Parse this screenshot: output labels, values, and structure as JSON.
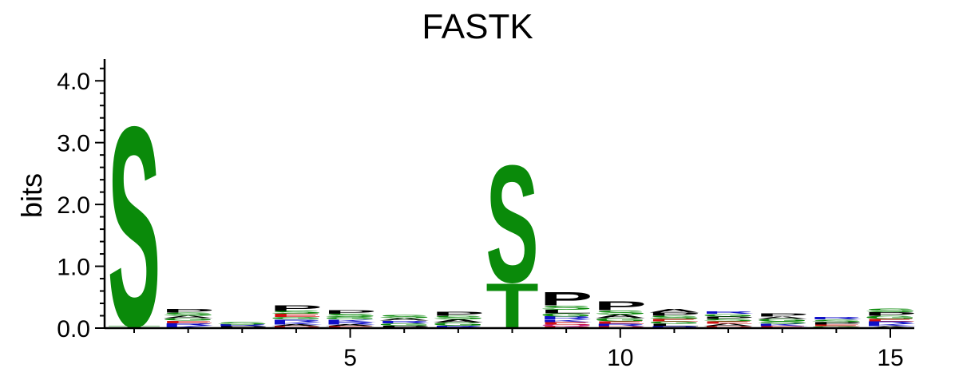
{
  "chart_data": {
    "type": "sequence-logo",
    "title": "FASTK",
    "ylabel": "bits",
    "ylim": [
      0,
      4.3
    ],
    "yticks": [
      "0.0",
      "1.0",
      "2.0",
      "3.0",
      "4.0"
    ],
    "xticks": [
      "5",
      "10",
      "15"
    ],
    "xtick_positions": [
      5,
      10,
      15
    ],
    "positions": 15,
    "colors": {
      "green": "#0a8a0a",
      "black": "#000000",
      "blue": "#1010c8",
      "red": "#d01010",
      "magenta": "#c0208c"
    },
    "columns": [
      {
        "pos": 1,
        "letters": [
          {
            "c": "S",
            "h": 3.33,
            "color": "green"
          },
          {
            "c": "T",
            "h": 0.04,
            "color": "green"
          }
        ]
      },
      {
        "pos": 2,
        "letters": [
          {
            "c": "P",
            "h": 0.06,
            "color": "black"
          },
          {
            "c": "S",
            "h": 0.05,
            "color": "green"
          },
          {
            "c": "K",
            "h": 0.04,
            "color": "blue"
          },
          {
            "c": "R",
            "h": 0.04,
            "color": "blue"
          },
          {
            "c": "E",
            "h": 0.04,
            "color": "red"
          },
          {
            "c": "G",
            "h": 0.04,
            "color": "green"
          },
          {
            "c": "A",
            "h": 0.04,
            "color": "black"
          }
        ]
      },
      {
        "pos": 3,
        "letters": [
          {
            "c": "S",
            "h": 0.04,
            "color": "green"
          },
          {
            "c": "P",
            "h": 0.03,
            "color": "black"
          },
          {
            "c": "R",
            "h": 0.03,
            "color": "blue"
          }
        ]
      },
      {
        "pos": 4,
        "letters": [
          {
            "c": "P",
            "h": 0.09,
            "color": "black"
          },
          {
            "c": "E",
            "h": 0.05,
            "color": "red"
          },
          {
            "c": "S",
            "h": 0.05,
            "color": "green"
          },
          {
            "c": "K",
            "h": 0.04,
            "color": "blue"
          },
          {
            "c": "R",
            "h": 0.04,
            "color": "blue"
          },
          {
            "c": "G",
            "h": 0.04,
            "color": "green"
          },
          {
            "c": "D",
            "h": 0.03,
            "color": "red"
          },
          {
            "c": "A",
            "h": 0.03,
            "color": "black"
          }
        ]
      },
      {
        "pos": 5,
        "letters": [
          {
            "c": "P",
            "h": 0.06,
            "color": "black"
          },
          {
            "c": "S",
            "h": 0.05,
            "color": "green"
          },
          {
            "c": "R",
            "h": 0.04,
            "color": "blue"
          },
          {
            "c": "K",
            "h": 0.04,
            "color": "blue"
          },
          {
            "c": "G",
            "h": 0.04,
            "color": "green"
          },
          {
            "c": "E",
            "h": 0.03,
            "color": "red"
          },
          {
            "c": "A",
            "h": 0.03,
            "color": "black"
          }
        ]
      },
      {
        "pos": 6,
        "letters": [
          {
            "c": "S",
            "h": 0.05,
            "color": "green"
          },
          {
            "c": "P",
            "h": 0.04,
            "color": "black"
          },
          {
            "c": "G",
            "h": 0.04,
            "color": "green"
          },
          {
            "c": "R",
            "h": 0.04,
            "color": "blue"
          },
          {
            "c": "A",
            "h": 0.04,
            "color": "black"
          }
        ]
      },
      {
        "pos": 7,
        "letters": [
          {
            "c": "P",
            "h": 0.07,
            "color": "black"
          },
          {
            "c": "S",
            "h": 0.06,
            "color": "green"
          },
          {
            "c": "G",
            "h": 0.05,
            "color": "green"
          },
          {
            "c": "A",
            "h": 0.05,
            "color": "black"
          },
          {
            "c": "R",
            "h": 0.04,
            "color": "blue"
          }
        ]
      },
      {
        "pos": 8,
        "letters": [
          {
            "c": "S",
            "h": 1.95,
            "color": "green"
          },
          {
            "c": "T",
            "h": 0.75,
            "color": "green"
          }
        ]
      },
      {
        "pos": 9,
        "letters": [
          {
            "c": "P",
            "h": 0.22,
            "color": "black"
          },
          {
            "c": "S",
            "h": 0.07,
            "color": "green"
          },
          {
            "c": "L",
            "h": 0.06,
            "color": "black"
          },
          {
            "c": "R",
            "h": 0.05,
            "color": "blue"
          },
          {
            "c": "G",
            "h": 0.05,
            "color": "green"
          },
          {
            "c": "E",
            "h": 0.04,
            "color": "red"
          },
          {
            "c": "K",
            "h": 0.04,
            "color": "blue"
          },
          {
            "c": "D",
            "h": 0.03,
            "color": "red"
          },
          {
            "c": "Q",
            "h": 0.03,
            "color": "magenta"
          }
        ]
      },
      {
        "pos": 10,
        "letters": [
          {
            "c": "P",
            "h": 0.15,
            "color": "black"
          },
          {
            "c": "S",
            "h": 0.07,
            "color": "green"
          },
          {
            "c": "A",
            "h": 0.06,
            "color": "black"
          },
          {
            "c": "G",
            "h": 0.05,
            "color": "green"
          },
          {
            "c": "R",
            "h": 0.04,
            "color": "blue"
          },
          {
            "c": "E",
            "h": 0.04,
            "color": "red"
          },
          {
            "c": "D",
            "h": 0.03,
            "color": "red"
          }
        ]
      },
      {
        "pos": 11,
        "letters": [
          {
            "c": "A",
            "h": 0.06,
            "color": "black"
          },
          {
            "c": "S",
            "h": 0.05,
            "color": "green"
          },
          {
            "c": "P",
            "h": 0.05,
            "color": "black"
          },
          {
            "c": "L",
            "h": 0.04,
            "color": "black"
          },
          {
            "c": "G",
            "h": 0.04,
            "color": "green"
          },
          {
            "c": "E",
            "h": 0.04,
            "color": "red"
          },
          {
            "c": "R",
            "h": 0.03,
            "color": "blue"
          }
        ]
      },
      {
        "pos": 12,
        "letters": [
          {
            "c": "A",
            "h": 0.04,
            "color": "black"
          },
          {
            "c": "E",
            "h": 0.04,
            "color": "red"
          },
          {
            "c": "S",
            "h": 0.04,
            "color": "green"
          },
          {
            "c": "P",
            "h": 0.04,
            "color": "black"
          },
          {
            "c": "G",
            "h": 0.04,
            "color": "green"
          },
          {
            "c": "R",
            "h": 0.04,
            "color": "blue"
          },
          {
            "c": "D",
            "h": 0.03,
            "color": "red"
          }
        ]
      },
      {
        "pos": 13,
        "letters": [
          {
            "c": "P",
            "h": 0.05,
            "color": "black"
          },
          {
            "c": "K",
            "h": 0.04,
            "color": "blue"
          },
          {
            "c": "S",
            "h": 0.04,
            "color": "green"
          },
          {
            "c": "G",
            "h": 0.04,
            "color": "green"
          },
          {
            "c": "A",
            "h": 0.04,
            "color": "black"
          },
          {
            "c": "E",
            "h": 0.03,
            "color": "red"
          }
        ]
      },
      {
        "pos": 14,
        "letters": [
          {
            "c": "P",
            "h": 0.04,
            "color": "black"
          },
          {
            "c": "S",
            "h": 0.04,
            "color": "green"
          },
          {
            "c": "R",
            "h": 0.04,
            "color": "blue"
          },
          {
            "c": "G",
            "h": 0.03,
            "color": "green"
          },
          {
            "c": "E",
            "h": 0.03,
            "color": "red"
          }
        ]
      },
      {
        "pos": 15,
        "letters": [
          {
            "c": "P",
            "h": 0.06,
            "color": "black"
          },
          {
            "c": "S",
            "h": 0.06,
            "color": "green"
          },
          {
            "c": "G",
            "h": 0.05,
            "color": "green"
          },
          {
            "c": "K",
            "h": 0.04,
            "color": "blue"
          },
          {
            "c": "R",
            "h": 0.04,
            "color": "blue"
          },
          {
            "c": "E",
            "h": 0.04,
            "color": "red"
          },
          {
            "c": "A",
            "h": 0.03,
            "color": "black"
          }
        ]
      }
    ]
  }
}
